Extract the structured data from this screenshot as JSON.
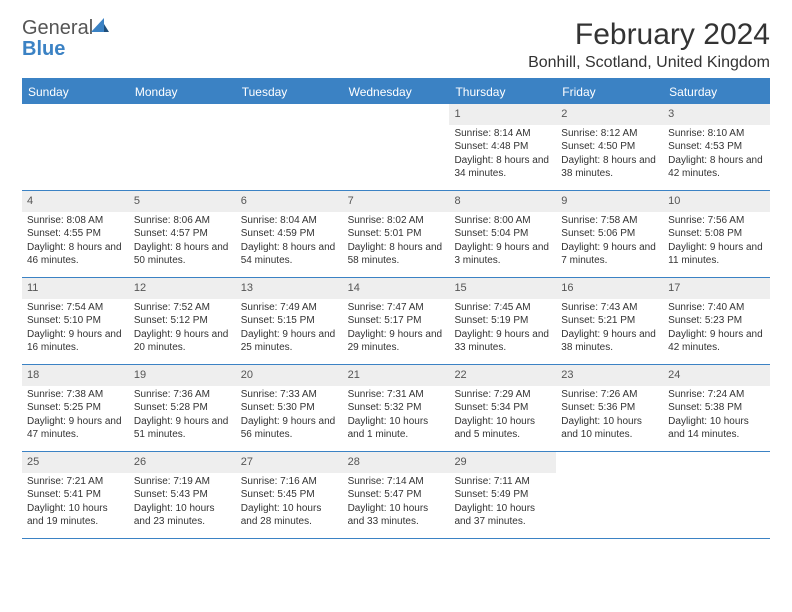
{
  "logo": {
    "part1": "General",
    "part2": "Blue"
  },
  "title": "February 2024",
  "location": "Bonhill, Scotland, United Kingdom",
  "colors": {
    "accent": "#3b82c4",
    "dayHeaderBg": "#eeeeee",
    "text": "#333333",
    "bg": "#ffffff"
  },
  "daysOfWeek": [
    "Sunday",
    "Monday",
    "Tuesday",
    "Wednesday",
    "Thursday",
    "Friday",
    "Saturday"
  ],
  "weeks": [
    [
      {
        "empty": true
      },
      {
        "empty": true
      },
      {
        "empty": true
      },
      {
        "empty": true
      },
      {
        "num": "1",
        "sunrise": "Sunrise: 8:14 AM",
        "sunset": "Sunset: 4:48 PM",
        "daylight": "Daylight: 8 hours and 34 minutes."
      },
      {
        "num": "2",
        "sunrise": "Sunrise: 8:12 AM",
        "sunset": "Sunset: 4:50 PM",
        "daylight": "Daylight: 8 hours and 38 minutes."
      },
      {
        "num": "3",
        "sunrise": "Sunrise: 8:10 AM",
        "sunset": "Sunset: 4:53 PM",
        "daylight": "Daylight: 8 hours and 42 minutes."
      }
    ],
    [
      {
        "num": "4",
        "sunrise": "Sunrise: 8:08 AM",
        "sunset": "Sunset: 4:55 PM",
        "daylight": "Daylight: 8 hours and 46 minutes."
      },
      {
        "num": "5",
        "sunrise": "Sunrise: 8:06 AM",
        "sunset": "Sunset: 4:57 PM",
        "daylight": "Daylight: 8 hours and 50 minutes."
      },
      {
        "num": "6",
        "sunrise": "Sunrise: 8:04 AM",
        "sunset": "Sunset: 4:59 PM",
        "daylight": "Daylight: 8 hours and 54 minutes."
      },
      {
        "num": "7",
        "sunrise": "Sunrise: 8:02 AM",
        "sunset": "Sunset: 5:01 PM",
        "daylight": "Daylight: 8 hours and 58 minutes."
      },
      {
        "num": "8",
        "sunrise": "Sunrise: 8:00 AM",
        "sunset": "Sunset: 5:04 PM",
        "daylight": "Daylight: 9 hours and 3 minutes."
      },
      {
        "num": "9",
        "sunrise": "Sunrise: 7:58 AM",
        "sunset": "Sunset: 5:06 PM",
        "daylight": "Daylight: 9 hours and 7 minutes."
      },
      {
        "num": "10",
        "sunrise": "Sunrise: 7:56 AM",
        "sunset": "Sunset: 5:08 PM",
        "daylight": "Daylight: 9 hours and 11 minutes."
      }
    ],
    [
      {
        "num": "11",
        "sunrise": "Sunrise: 7:54 AM",
        "sunset": "Sunset: 5:10 PM",
        "daylight": "Daylight: 9 hours and 16 minutes."
      },
      {
        "num": "12",
        "sunrise": "Sunrise: 7:52 AM",
        "sunset": "Sunset: 5:12 PM",
        "daylight": "Daylight: 9 hours and 20 minutes."
      },
      {
        "num": "13",
        "sunrise": "Sunrise: 7:49 AM",
        "sunset": "Sunset: 5:15 PM",
        "daylight": "Daylight: 9 hours and 25 minutes."
      },
      {
        "num": "14",
        "sunrise": "Sunrise: 7:47 AM",
        "sunset": "Sunset: 5:17 PM",
        "daylight": "Daylight: 9 hours and 29 minutes."
      },
      {
        "num": "15",
        "sunrise": "Sunrise: 7:45 AM",
        "sunset": "Sunset: 5:19 PM",
        "daylight": "Daylight: 9 hours and 33 minutes."
      },
      {
        "num": "16",
        "sunrise": "Sunrise: 7:43 AM",
        "sunset": "Sunset: 5:21 PM",
        "daylight": "Daylight: 9 hours and 38 minutes."
      },
      {
        "num": "17",
        "sunrise": "Sunrise: 7:40 AM",
        "sunset": "Sunset: 5:23 PM",
        "daylight": "Daylight: 9 hours and 42 minutes."
      }
    ],
    [
      {
        "num": "18",
        "sunrise": "Sunrise: 7:38 AM",
        "sunset": "Sunset: 5:25 PM",
        "daylight": "Daylight: 9 hours and 47 minutes."
      },
      {
        "num": "19",
        "sunrise": "Sunrise: 7:36 AM",
        "sunset": "Sunset: 5:28 PM",
        "daylight": "Daylight: 9 hours and 51 minutes."
      },
      {
        "num": "20",
        "sunrise": "Sunrise: 7:33 AM",
        "sunset": "Sunset: 5:30 PM",
        "daylight": "Daylight: 9 hours and 56 minutes."
      },
      {
        "num": "21",
        "sunrise": "Sunrise: 7:31 AM",
        "sunset": "Sunset: 5:32 PM",
        "daylight": "Daylight: 10 hours and 1 minute."
      },
      {
        "num": "22",
        "sunrise": "Sunrise: 7:29 AM",
        "sunset": "Sunset: 5:34 PM",
        "daylight": "Daylight: 10 hours and 5 minutes."
      },
      {
        "num": "23",
        "sunrise": "Sunrise: 7:26 AM",
        "sunset": "Sunset: 5:36 PM",
        "daylight": "Daylight: 10 hours and 10 minutes."
      },
      {
        "num": "24",
        "sunrise": "Sunrise: 7:24 AM",
        "sunset": "Sunset: 5:38 PM",
        "daylight": "Daylight: 10 hours and 14 minutes."
      }
    ],
    [
      {
        "num": "25",
        "sunrise": "Sunrise: 7:21 AM",
        "sunset": "Sunset: 5:41 PM",
        "daylight": "Daylight: 10 hours and 19 minutes."
      },
      {
        "num": "26",
        "sunrise": "Sunrise: 7:19 AM",
        "sunset": "Sunset: 5:43 PM",
        "daylight": "Daylight: 10 hours and 23 minutes."
      },
      {
        "num": "27",
        "sunrise": "Sunrise: 7:16 AM",
        "sunset": "Sunset: 5:45 PM",
        "daylight": "Daylight: 10 hours and 28 minutes."
      },
      {
        "num": "28",
        "sunrise": "Sunrise: 7:14 AM",
        "sunset": "Sunset: 5:47 PM",
        "daylight": "Daylight: 10 hours and 33 minutes."
      },
      {
        "num": "29",
        "sunrise": "Sunrise: 7:11 AM",
        "sunset": "Sunset: 5:49 PM",
        "daylight": "Daylight: 10 hours and 37 minutes."
      },
      {
        "empty": true
      },
      {
        "empty": true
      }
    ]
  ]
}
